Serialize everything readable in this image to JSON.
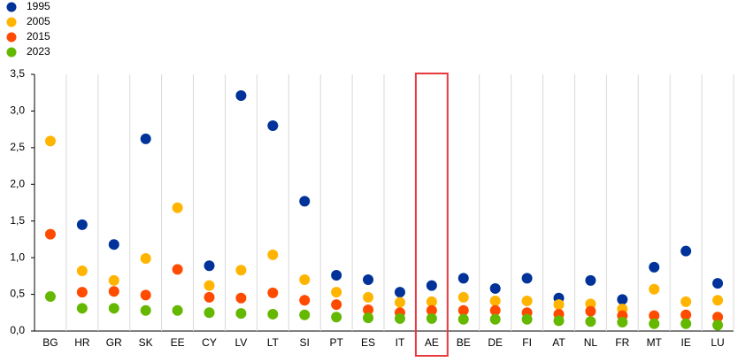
{
  "chart_data": {
    "type": "dot",
    "categories": [
      "BG",
      "HR",
      "GR",
      "SK",
      "EE",
      "CY",
      "LV",
      "LT",
      "SI",
      "PT",
      "ES",
      "IT",
      "AE",
      "BE",
      "DE",
      "FI",
      "AT",
      "NL",
      "FR",
      "MT",
      "IE",
      "LU"
    ],
    "series": [
      {
        "name": "1995",
        "color": "#003299",
        "values": [
          null,
          1.45,
          1.18,
          2.62,
          null,
          0.89,
          3.21,
          2.8,
          1.77,
          0.76,
          0.7,
          0.53,
          0.62,
          0.72,
          0.58,
          0.72,
          0.45,
          0.69,
          0.43,
          0.87,
          1.09,
          0.65
        ]
      },
      {
        "name": "2005",
        "color": "#ffb400",
        "values": [
          2.59,
          0.82,
          0.69,
          0.99,
          1.68,
          0.62,
          0.83,
          1.04,
          0.7,
          0.53,
          0.46,
          0.39,
          0.4,
          0.46,
          0.41,
          0.41,
          0.36,
          0.37,
          0.3,
          0.57,
          0.4,
          0.42
        ]
      },
      {
        "name": "2015",
        "color": "#ff4b00",
        "values": [
          1.32,
          0.53,
          0.54,
          0.49,
          0.84,
          0.46,
          0.45,
          0.52,
          0.42,
          0.36,
          0.29,
          0.25,
          0.28,
          0.28,
          0.28,
          0.25,
          0.23,
          0.27,
          0.21,
          0.21,
          0.22,
          0.19
        ]
      },
      {
        "name": "2023",
        "color": "#65b800",
        "values": [
          0.47,
          0.31,
          0.31,
          0.28,
          0.28,
          0.25,
          0.24,
          0.23,
          0.22,
          0.19,
          0.18,
          0.17,
          0.17,
          0.16,
          0.16,
          0.16,
          0.14,
          0.13,
          0.12,
          0.1,
          0.1,
          0.08
        ]
      }
    ],
    "ylim": [
      0,
      3.5
    ],
    "yticks": [
      {
        "value": 0,
        "label": "0,0"
      },
      {
        "value": 0.5,
        "label": "0,5"
      },
      {
        "value": 1,
        "label": "1,0"
      },
      {
        "value": 1.5,
        "label": "1,5"
      },
      {
        "value": 2,
        "label": "2,0"
      },
      {
        "value": 2.5,
        "label": "2,5"
      },
      {
        "value": 3,
        "label": "3,0"
      },
      {
        "value": 3.5,
        "label": "3,5"
      }
    ],
    "category_separators": true,
    "highlight_index": 12,
    "highlight_color": "#e8393f",
    "legend": "top-left"
  }
}
